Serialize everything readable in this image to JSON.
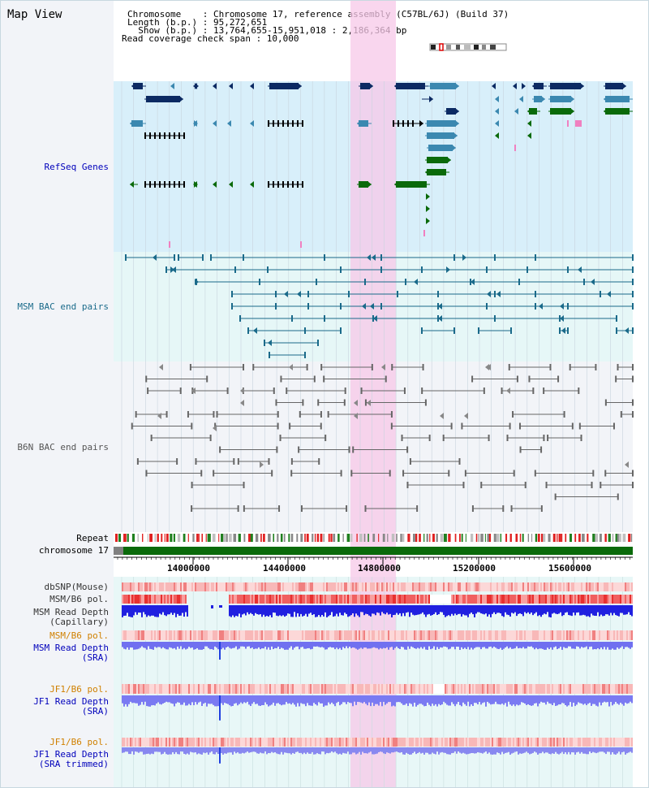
{
  "title": "Map View",
  "header": {
    "line1": "Chromosome    : Chromosome 17, reference assembly (C57BL/6J) (Build 37)",
    "line2": "Length (b.p.) : 95,272,651",
    "line3": "  Show (b.p.) : 13,764,655-15,951,018 : 2,186,364 bp",
    "line4": "Read coverage check span : 10,000"
  },
  "tracks": {
    "refseq": "RefSeq Genes",
    "msm_bac": "MSM BAC end pairs",
    "b6n_bac": "B6N BAC end pairs",
    "repeat": "Repeat",
    "chromosome": "chromosome 17",
    "dbsnp": "dbSNP(Mouse)",
    "msm_b6_pol_cap": "MSM/B6 pol.",
    "msm_depth_cap_1": "MSM Read Depth",
    "msm_depth_cap_2": "(Capillary)",
    "msm_b6_pol_sra": "MSM/B6 pol.",
    "msm_depth_sra_1": "MSM Read Depth",
    "msm_depth_sra_2": "(SRA)",
    "jf1_b6_pol": "JF1/B6 pol.",
    "jf1_depth_1": "JF1 Read Depth",
    "jf1_depth_2": "(SRA)",
    "jf1_b6_pol_trim": "JF1/B6 pol.",
    "jf1_trim_1": "JF1 Read Depth",
    "jf1_trim_2": "(SRA trimmed)"
  },
  "ruler": {
    "ticks": [
      "14000000",
      "14400000",
      "14800000",
      "15200000",
      "15600000"
    ]
  },
  "colors": {
    "refseq_bg": "#d8effa",
    "msm_bg": "#e6f7f7",
    "b6n_bg": "#f2f4f8",
    "highlight": "#f7c8e8",
    "chromosome_bar": "#0a6a0a",
    "dark_navy": "#0c2a63",
    "steel_blue": "#3b88b0",
    "dark_green": "#0a6a0a",
    "label_blue": "#0000bb",
    "label_orange": "#d08000",
    "label_teal": "#1a6a8a",
    "label_gray": "#555555"
  }
}
